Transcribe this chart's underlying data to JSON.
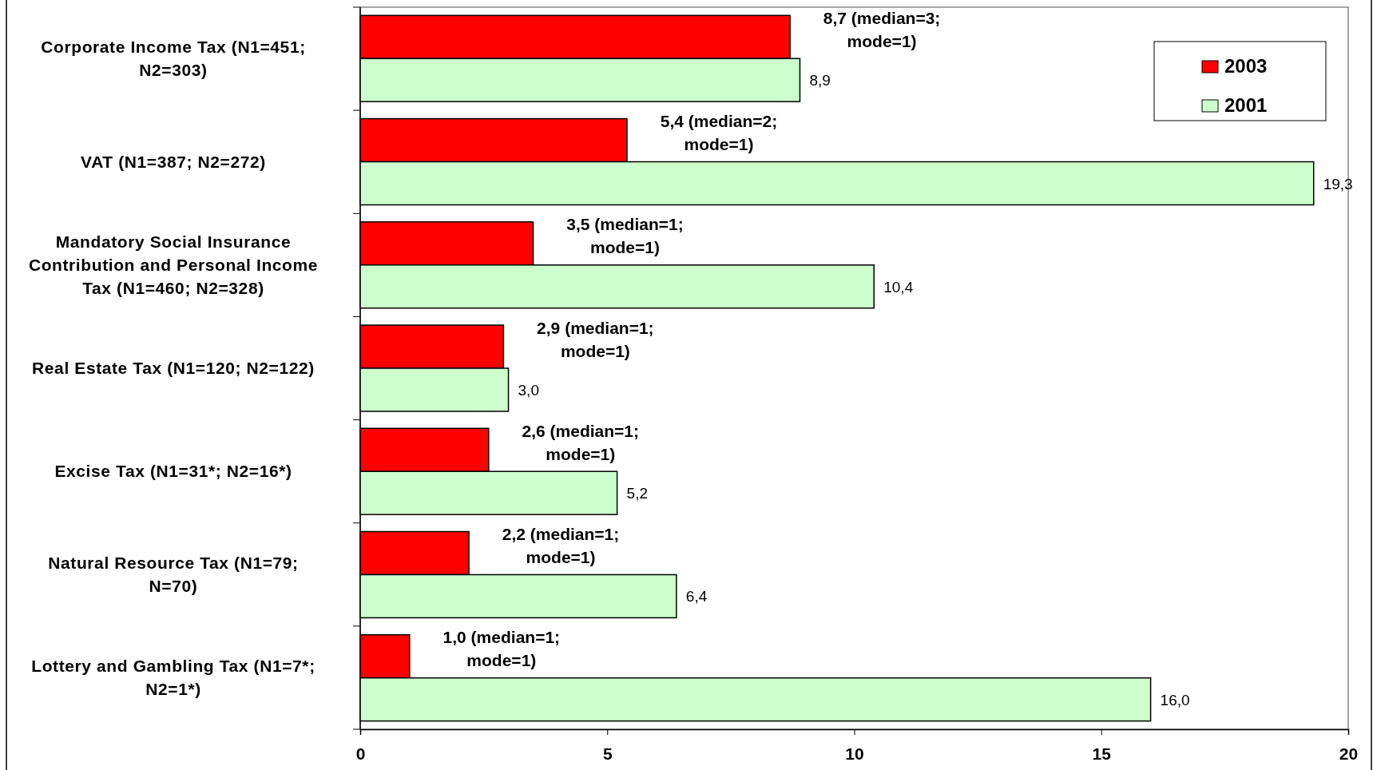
{
  "chart_data": {
    "type": "bar",
    "orientation": "horizontal",
    "categories": [
      "Corporate Income Tax (N1=451; N2=303)",
      "VAT (N1=387; N2=272)",
      "Mandatory Social Insurance Contribution and Personal Income Tax (N1=460; N2=328)",
      "Real Estate Tax (N1=120; N2=122)",
      "Excise Tax (N1=31*; N2=16*)",
      "Natural Resource Tax (N1=79; N=70)",
      "Lottery and Gambling Tax (N1=7*; N2=1*)"
    ],
    "series": [
      {
        "name": "2003",
        "color": "#ff0000",
        "values": [
          8.7,
          5.4,
          3.5,
          2.9,
          2.6,
          2.2,
          1.0
        ],
        "value_labels": [
          "8,7 (median=3; mode=1)",
          "5,4 (median=2; mode=1)",
          "3,5 (median=1; mode=1)",
          "2,9 (median=1; mode=1)",
          "2,6 (median=1; mode=1)",
          "2,2 (median=1; mode=1)",
          "1,0 (median=1; mode=1)"
        ]
      },
      {
        "name": "2001",
        "color": "#ccffcc",
        "values": [
          8.9,
          19.3,
          10.4,
          3.0,
          5.2,
          6.4,
          16.0
        ],
        "value_labels": [
          "8,9",
          "19,3",
          "10,4",
          "3,0",
          "5,2",
          "6,4",
          "16,0"
        ]
      }
    ],
    "xlim": [
      0,
      20
    ],
    "xticks": [
      0,
      5,
      10,
      15,
      20
    ],
    "grid": false,
    "legend": "top right"
  }
}
